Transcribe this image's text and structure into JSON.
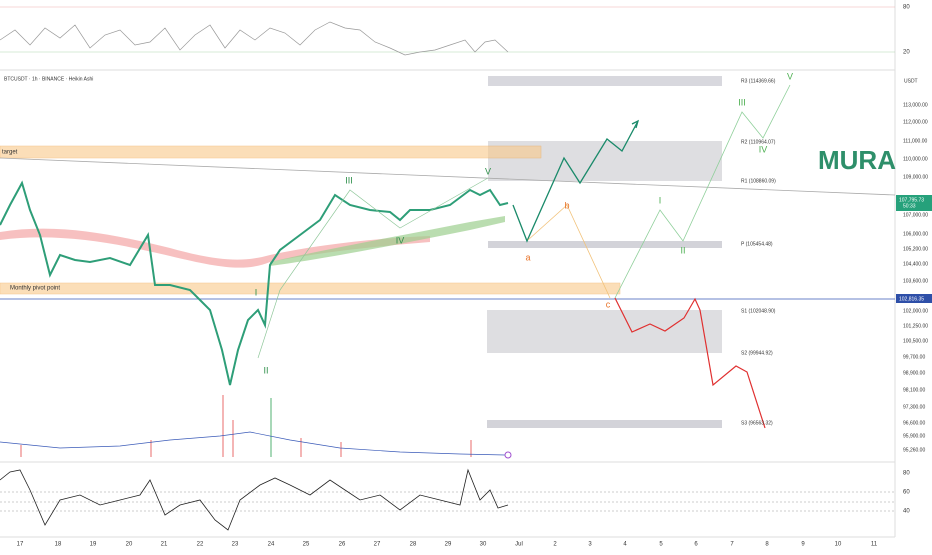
{
  "header": {
    "symbol": "BTCUSDT · 1h · BINANCE · Heikin Ashi",
    "currency": "USDT"
  },
  "top_axis": [
    "80",
    "20"
  ],
  "price_axis": [
    "113,000.00",
    "112,000.00",
    "111,000.00",
    "110,000.00",
    "109,000.00",
    "107,000.00",
    "106,000.00",
    "105,200.00",
    "104,400.00",
    "103,600.00",
    "102,000.00",
    "101,250.00",
    "100,500.00",
    "99,700.00",
    "98,900.00",
    "98,100.00",
    "97,300.00",
    "96,600.00",
    "95,900.00",
    "95,260.00"
  ],
  "price_tags": {
    "last": "107,795.73",
    "countdown": "50:33",
    "line": "102,816.35"
  },
  "levels": [
    "R3 (114369.66)",
    "R2 (110964.07)",
    "R1 (108860.09)",
    "P (105454.48)",
    "S1 (102048.90)",
    "S2 (99944.92)",
    "S3 (96563.32)"
  ],
  "zones": [
    "target",
    "Monthly pivot point"
  ],
  "waves": [
    "III",
    "V",
    "IV",
    "I",
    "II",
    "a",
    "b",
    "c",
    "I",
    "II",
    "III",
    "IV",
    "V"
  ],
  "watermark": "MURA",
  "rsi_axis": [
    "80",
    "60",
    "40"
  ],
  "time_axis": [
    "17",
    "18",
    "19",
    "20",
    "21",
    "22",
    "23",
    "24",
    "25",
    "26",
    "27",
    "28",
    "29",
    "30",
    "Jul",
    "2",
    "3",
    "4",
    "5",
    "6",
    "7",
    "8",
    "9",
    "10",
    "11"
  ]
}
